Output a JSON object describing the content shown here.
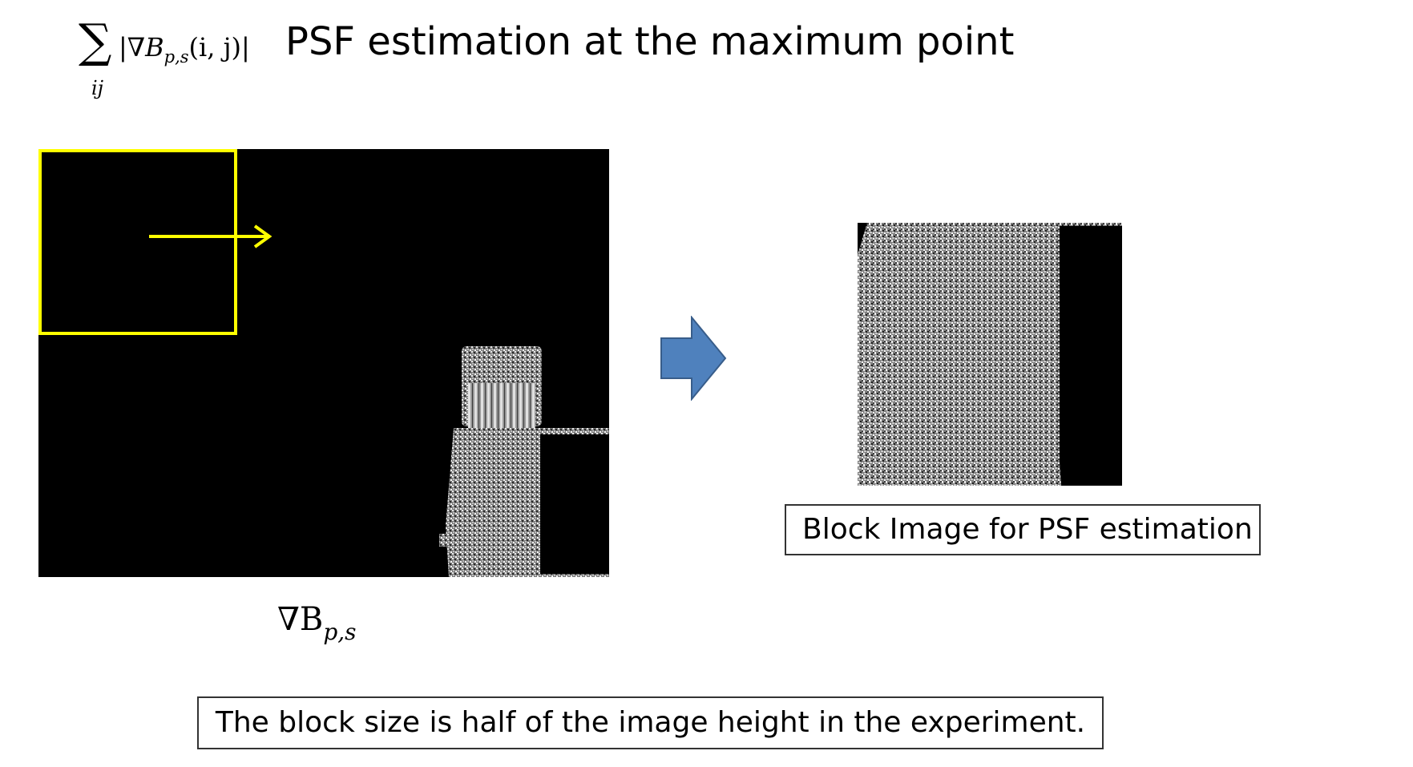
{
  "formula": {
    "sigma": "∑",
    "index": "ij",
    "abs_open": "|∇",
    "var": "B",
    "sub": "p,s",
    "args": "(i, j)",
    "abs_close": "|"
  },
  "title": "PSF estimation at the maximum point",
  "gradient_caption": {
    "main": "∇B",
    "sub": "p,s"
  },
  "block_label": "Block Image for PSF estimation",
  "note": "The block size is half of the image height in the experiment.",
  "colors": {
    "window_outline": "#ffff00",
    "arrow_fill": "#4f81bd",
    "arrow_stroke": "#385d8a",
    "panel_background": "#000000"
  }
}
